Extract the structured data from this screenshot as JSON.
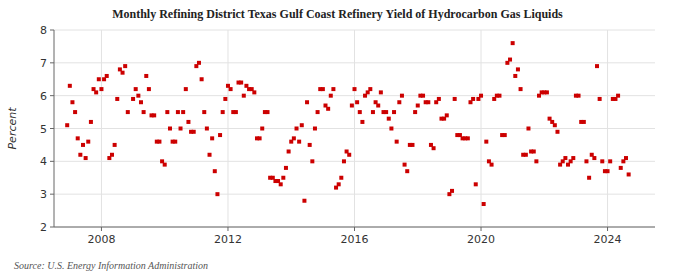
{
  "chart_data": {
    "type": "scatter",
    "title": "Monthly Refining District Texas Gulf Coast Refinery Yield of Hydrocarbon Gas Liquids",
    "y_label": "Percent",
    "annotations": [
      "Source: U.S. Energy Information Administration"
    ],
    "color": "#cc0000",
    "marker": "square",
    "grid": true,
    "xlim": [
      2006.5,
      2025.5
    ],
    "xticks": [
      2008,
      2012,
      2016,
      2020,
      2024
    ],
    "ylim": [
      2,
      8
    ],
    "yticks": [
      2,
      3,
      4,
      5,
      6,
      7,
      8
    ],
    "x": [
      2006.917,
      2007.0,
      2007.083,
      2007.167,
      2007.25,
      2007.333,
      2007.417,
      2007.5,
      2007.583,
      2007.667,
      2007.75,
      2007.833,
      2007.917,
      2008.0,
      2008.083,
      2008.167,
      2008.25,
      2008.333,
      2008.417,
      2008.5,
      2008.583,
      2008.667,
      2008.75,
      2008.833,
      2009.0,
      2009.083,
      2009.167,
      2009.25,
      2009.333,
      2009.417,
      2009.5,
      2009.583,
      2009.667,
      2009.75,
      2009.833,
      2009.917,
      2010.0,
      2010.083,
      2010.167,
      2010.25,
      2010.333,
      2010.417,
      2010.5,
      2010.583,
      2010.667,
      2010.75,
      2010.833,
      2010.917,
      2011.0,
      2011.083,
      2011.167,
      2011.25,
      2011.333,
      2011.417,
      2011.5,
      2011.583,
      2011.667,
      2011.75,
      2011.833,
      2011.917,
      2012.0,
      2012.083,
      2012.167,
      2012.25,
      2012.333,
      2012.417,
      2012.5,
      2012.583,
      2012.667,
      2012.75,
      2012.833,
      2012.917,
      2013.0,
      2013.083,
      2013.167,
      2013.25,
      2013.333,
      2013.417,
      2013.5,
      2013.583,
      2013.667,
      2013.75,
      2013.833,
      2013.917,
      2014.0,
      2014.083,
      2014.167,
      2014.25,
      2014.333,
      2014.417,
      2014.5,
      2014.583,
      2014.667,
      2014.75,
      2014.833,
      2014.917,
      2015.0,
      2015.083,
      2015.167,
      2015.25,
      2015.333,
      2015.417,
      2015.5,
      2015.583,
      2015.667,
      2015.75,
      2015.833,
      2015.917,
      2016.0,
      2016.083,
      2016.167,
      2016.25,
      2016.333,
      2016.417,
      2016.5,
      2016.583,
      2016.667,
      2016.75,
      2016.833,
      2016.917,
      2017.0,
      2017.083,
      2017.167,
      2017.25,
      2017.333,
      2017.417,
      2017.5,
      2017.583,
      2017.667,
      2017.75,
      2017.833,
      2017.917,
      2018.0,
      2018.083,
      2018.167,
      2018.25,
      2018.333,
      2018.417,
      2018.5,
      2018.583,
      2018.667,
      2018.75,
      2018.833,
      2018.917,
      2019.0,
      2019.083,
      2019.167,
      2019.25,
      2019.333,
      2019.417,
      2019.5,
      2019.583,
      2019.667,
      2019.75,
      2019.833,
      2019.917,
      2020.0,
      2020.083,
      2020.167,
      2020.25,
      2020.333,
      2020.417,
      2020.5,
      2020.583,
      2020.667,
      2020.75,
      2020.833,
      2020.917,
      2021.0,
      2021.083,
      2021.167,
      2021.25,
      2021.333,
      2021.417,
      2021.5,
      2021.583,
      2021.667,
      2021.75,
      2021.833,
      2021.917,
      2022.0,
      2022.083,
      2022.167,
      2022.25,
      2022.333,
      2022.417,
      2022.5,
      2022.583,
      2022.667,
      2022.75,
      2022.833,
      2022.917,
      2023.0,
      2023.083,
      2023.167,
      2023.25,
      2023.333,
      2023.417,
      2023.5,
      2023.583,
      2023.667,
      2023.75,
      2023.833,
      2023.917,
      2024.0,
      2024.083,
      2024.167,
      2024.25,
      2024.333,
      2024.417,
      2024.5,
      2024.583,
      2024.667
    ],
    "values": [
      5.1,
      6.3,
      5.8,
      5.5,
      4.7,
      4.2,
      4.5,
      4.1,
      4.6,
      5.2,
      6.2,
      6.1,
      6.5,
      6.2,
      6.5,
      6.6,
      4.1,
      4.2,
      4.5,
      5.9,
      6.8,
      6.7,
      6.9,
      5.5,
      5.9,
      6.2,
      6.0,
      5.8,
      5.5,
      6.6,
      6.2,
      5.4,
      5.4,
      4.6,
      4.6,
      4.0,
      3.9,
      5.5,
      5.0,
      4.6,
      4.6,
      5.5,
      5.0,
      5.5,
      6.2,
      5.2,
      4.9,
      4.9,
      6.9,
      7.0,
      6.5,
      5.5,
      5.0,
      4.2,
      4.7,
      3.7,
      3.0,
      4.8,
      5.5,
      5.9,
      6.3,
      6.2,
      5.5,
      5.5,
      6.4,
      6.4,
      6.0,
      6.3,
      6.2,
      6.2,
      6.1,
      4.7,
      4.7,
      5.0,
      5.5,
      5.5,
      3.5,
      3.5,
      3.4,
      3.4,
      3.3,
      3.5,
      3.8,
      4.3,
      4.6,
      4.7,
      5.0,
      4.6,
      5.1,
      2.8,
      5.8,
      4.5,
      4.0,
      5.0,
      5.5,
      6.2,
      6.2,
      5.7,
      5.6,
      6.0,
      6.2,
      3.2,
      3.3,
      3.5,
      4.0,
      4.3,
      4.2,
      5.7,
      6.2,
      5.8,
      5.5,
      5.2,
      6.0,
      6.1,
      6.2,
      5.5,
      5.8,
      5.7,
      6.1,
      5.5,
      5.5,
      5.3,
      5.0,
      5.5,
      4.6,
      5.8,
      6.0,
      3.9,
      3.7,
      4.5,
      4.5,
      5.5,
      5.7,
      6.0,
      6.0,
      5.8,
      5.8,
      4.5,
      4.4,
      5.8,
      5.9,
      5.3,
      5.3,
      5.4,
      3.0,
      3.1,
      5.9,
      4.8,
      4.8,
      4.7,
      4.7,
      4.7,
      5.8,
      5.9,
      3.3,
      5.9,
      6.0,
      2.7,
      4.6,
      4.0,
      3.9,
      5.9,
      6.0,
      6.0,
      4.8,
      4.8,
      7.0,
      7.1,
      7.6,
      6.6,
      6.8,
      6.2,
      4.2,
      4.2,
      5.0,
      4.3,
      4.3,
      4.0,
      6.0,
      6.1,
      6.1,
      6.1,
      5.3,
      5.2,
      5.1,
      4.9,
      3.9,
      4.0,
      4.1,
      3.9,
      4.0,
      4.1,
      6.0,
      6.0,
      5.2,
      5.2,
      4.0,
      3.5,
      4.2,
      4.1,
      6.9,
      5.9,
      4.0,
      3.7,
      3.7,
      4.0,
      5.9,
      5.9,
      6.0,
      3.8,
      4.0,
      4.1,
      3.6
    ]
  }
}
